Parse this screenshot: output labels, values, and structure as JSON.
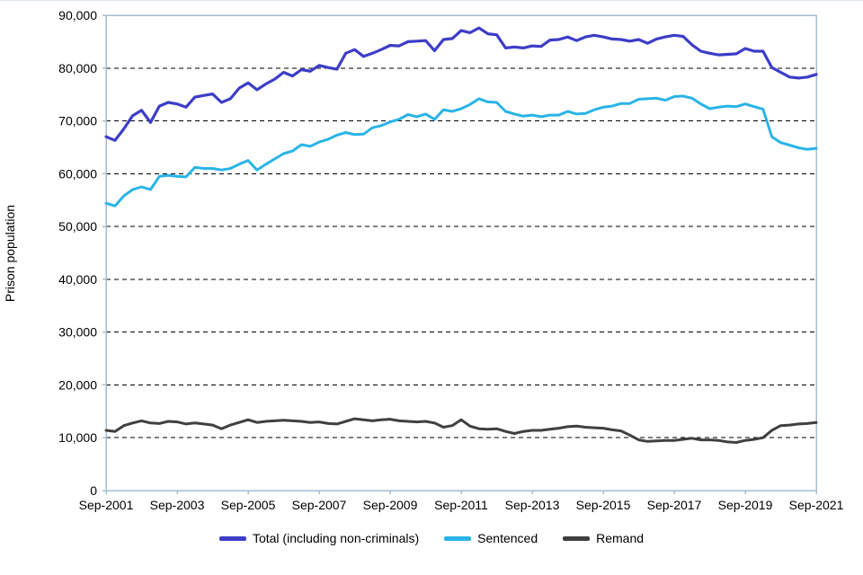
{
  "chart_data": {
    "type": "line",
    "title": "",
    "xlabel": "",
    "ylabel": "Prison population",
    "ylim": [
      0,
      90000
    ],
    "grid": "horizontal-dashed",
    "legend_position": "bottom-center",
    "frame_color": "#a5bdd1",
    "gridline_color": "#000000",
    "y_ticks": [
      0,
      10000,
      20000,
      30000,
      40000,
      50000,
      60000,
      70000,
      80000,
      90000
    ],
    "y_tick_labels": [
      "0",
      "10,000",
      "20,000",
      "30,000",
      "40,000",
      "50,000",
      "60,000",
      "70,000",
      "80,000",
      "90,000"
    ],
    "x_tick_labels": [
      "Sep-2001",
      "Sep-2003",
      "Sep-2005",
      "Sep-2007",
      "Sep-2009",
      "Sep-2011",
      "Sep-2013",
      "Sep-2015",
      "Sep-2017",
      "Sep-2019",
      "Sep-2021"
    ],
    "x_tick_indices": [
      0,
      8,
      16,
      24,
      32,
      40,
      48,
      56,
      64,
      72,
      80
    ],
    "x_frequency": "quarterly",
    "series": [
      {
        "id": "total",
        "name": "Total (including non-criminals)",
        "color": "#3d3dc8",
        "values": [
          67000,
          66300,
          68500,
          71000,
          72000,
          69700,
          72800,
          73500,
          73200,
          72600,
          74500,
          74800,
          75100,
          73500,
          74200,
          76200,
          77200,
          75900,
          77000,
          77900,
          79200,
          78500,
          79700,
          79400,
          80500,
          80100,
          79800,
          82800,
          83500,
          82200,
          82800,
          83500,
          84300,
          84200,
          85000,
          85100,
          85200,
          83300,
          85400,
          85600,
          87100,
          86700,
          87600,
          86500,
          86300,
          83800,
          84000,
          83800,
          84200,
          84100,
          85300,
          85400,
          85900,
          85200,
          85900,
          86200,
          85900,
          85500,
          85400,
          85100,
          85400,
          84700,
          85500,
          85900,
          86200,
          86000,
          84400,
          83200,
          82800,
          82500,
          82600,
          82700,
          83700,
          83200,
          83200,
          80100,
          79200,
          78300,
          78100,
          78300,
          78800
        ]
      },
      {
        "id": "sentenced",
        "name": "Sentenced",
        "color": "#29b4e7",
        "values": [
          54400,
          53900,
          55800,
          57000,
          57500,
          57000,
          59500,
          59700,
          59500,
          59400,
          61200,
          61000,
          61000,
          60700,
          61000,
          61800,
          62500,
          60700,
          61800,
          62800,
          63800,
          64300,
          65500,
          65200,
          66000,
          66500,
          67300,
          67800,
          67400,
          67500,
          68700,
          69100,
          69800,
          70300,
          71200,
          70800,
          71300,
          70300,
          72100,
          71800,
          72300,
          73100,
          74200,
          73600,
          73500,
          71800,
          71300,
          70900,
          71100,
          70800,
          71100,
          71100,
          71800,
          71300,
          71400,
          72100,
          72600,
          72800,
          73300,
          73300,
          74100,
          74200,
          74300,
          73900,
          74600,
          74700,
          74300,
          73200,
          72300,
          72600,
          72800,
          72700,
          73200,
          72700,
          72200,
          67000,
          65900,
          65400,
          64900,
          64600,
          64800
        ]
      },
      {
        "id": "remand",
        "name": "Remand",
        "color": "#404040",
        "values": [
          11400,
          11200,
          12300,
          12800,
          13200,
          12800,
          12700,
          13100,
          13000,
          12600,
          12800,
          12600,
          12400,
          11700,
          12400,
          12900,
          13400,
          12900,
          13100,
          13200,
          13300,
          13200,
          13100,
          12900,
          13000,
          12700,
          12600,
          13100,
          13600,
          13400,
          13200,
          13400,
          13500,
          13200,
          13100,
          13000,
          13100,
          12800,
          12000,
          12300,
          13400,
          12200,
          11700,
          11600,
          11700,
          11200,
          10800,
          11200,
          11400,
          11400,
          11600,
          11800,
          12100,
          12200,
          12000,
          11900,
          11800,
          11500,
          11300,
          10500,
          9600,
          9300,
          9400,
          9500,
          9500,
          9700,
          9900,
          9600,
          9600,
          9500,
          9200,
          9100,
          9500,
          9700,
          10000,
          11400,
          12300,
          12400,
          12600,
          12700,
          12900
        ]
      }
    ]
  }
}
